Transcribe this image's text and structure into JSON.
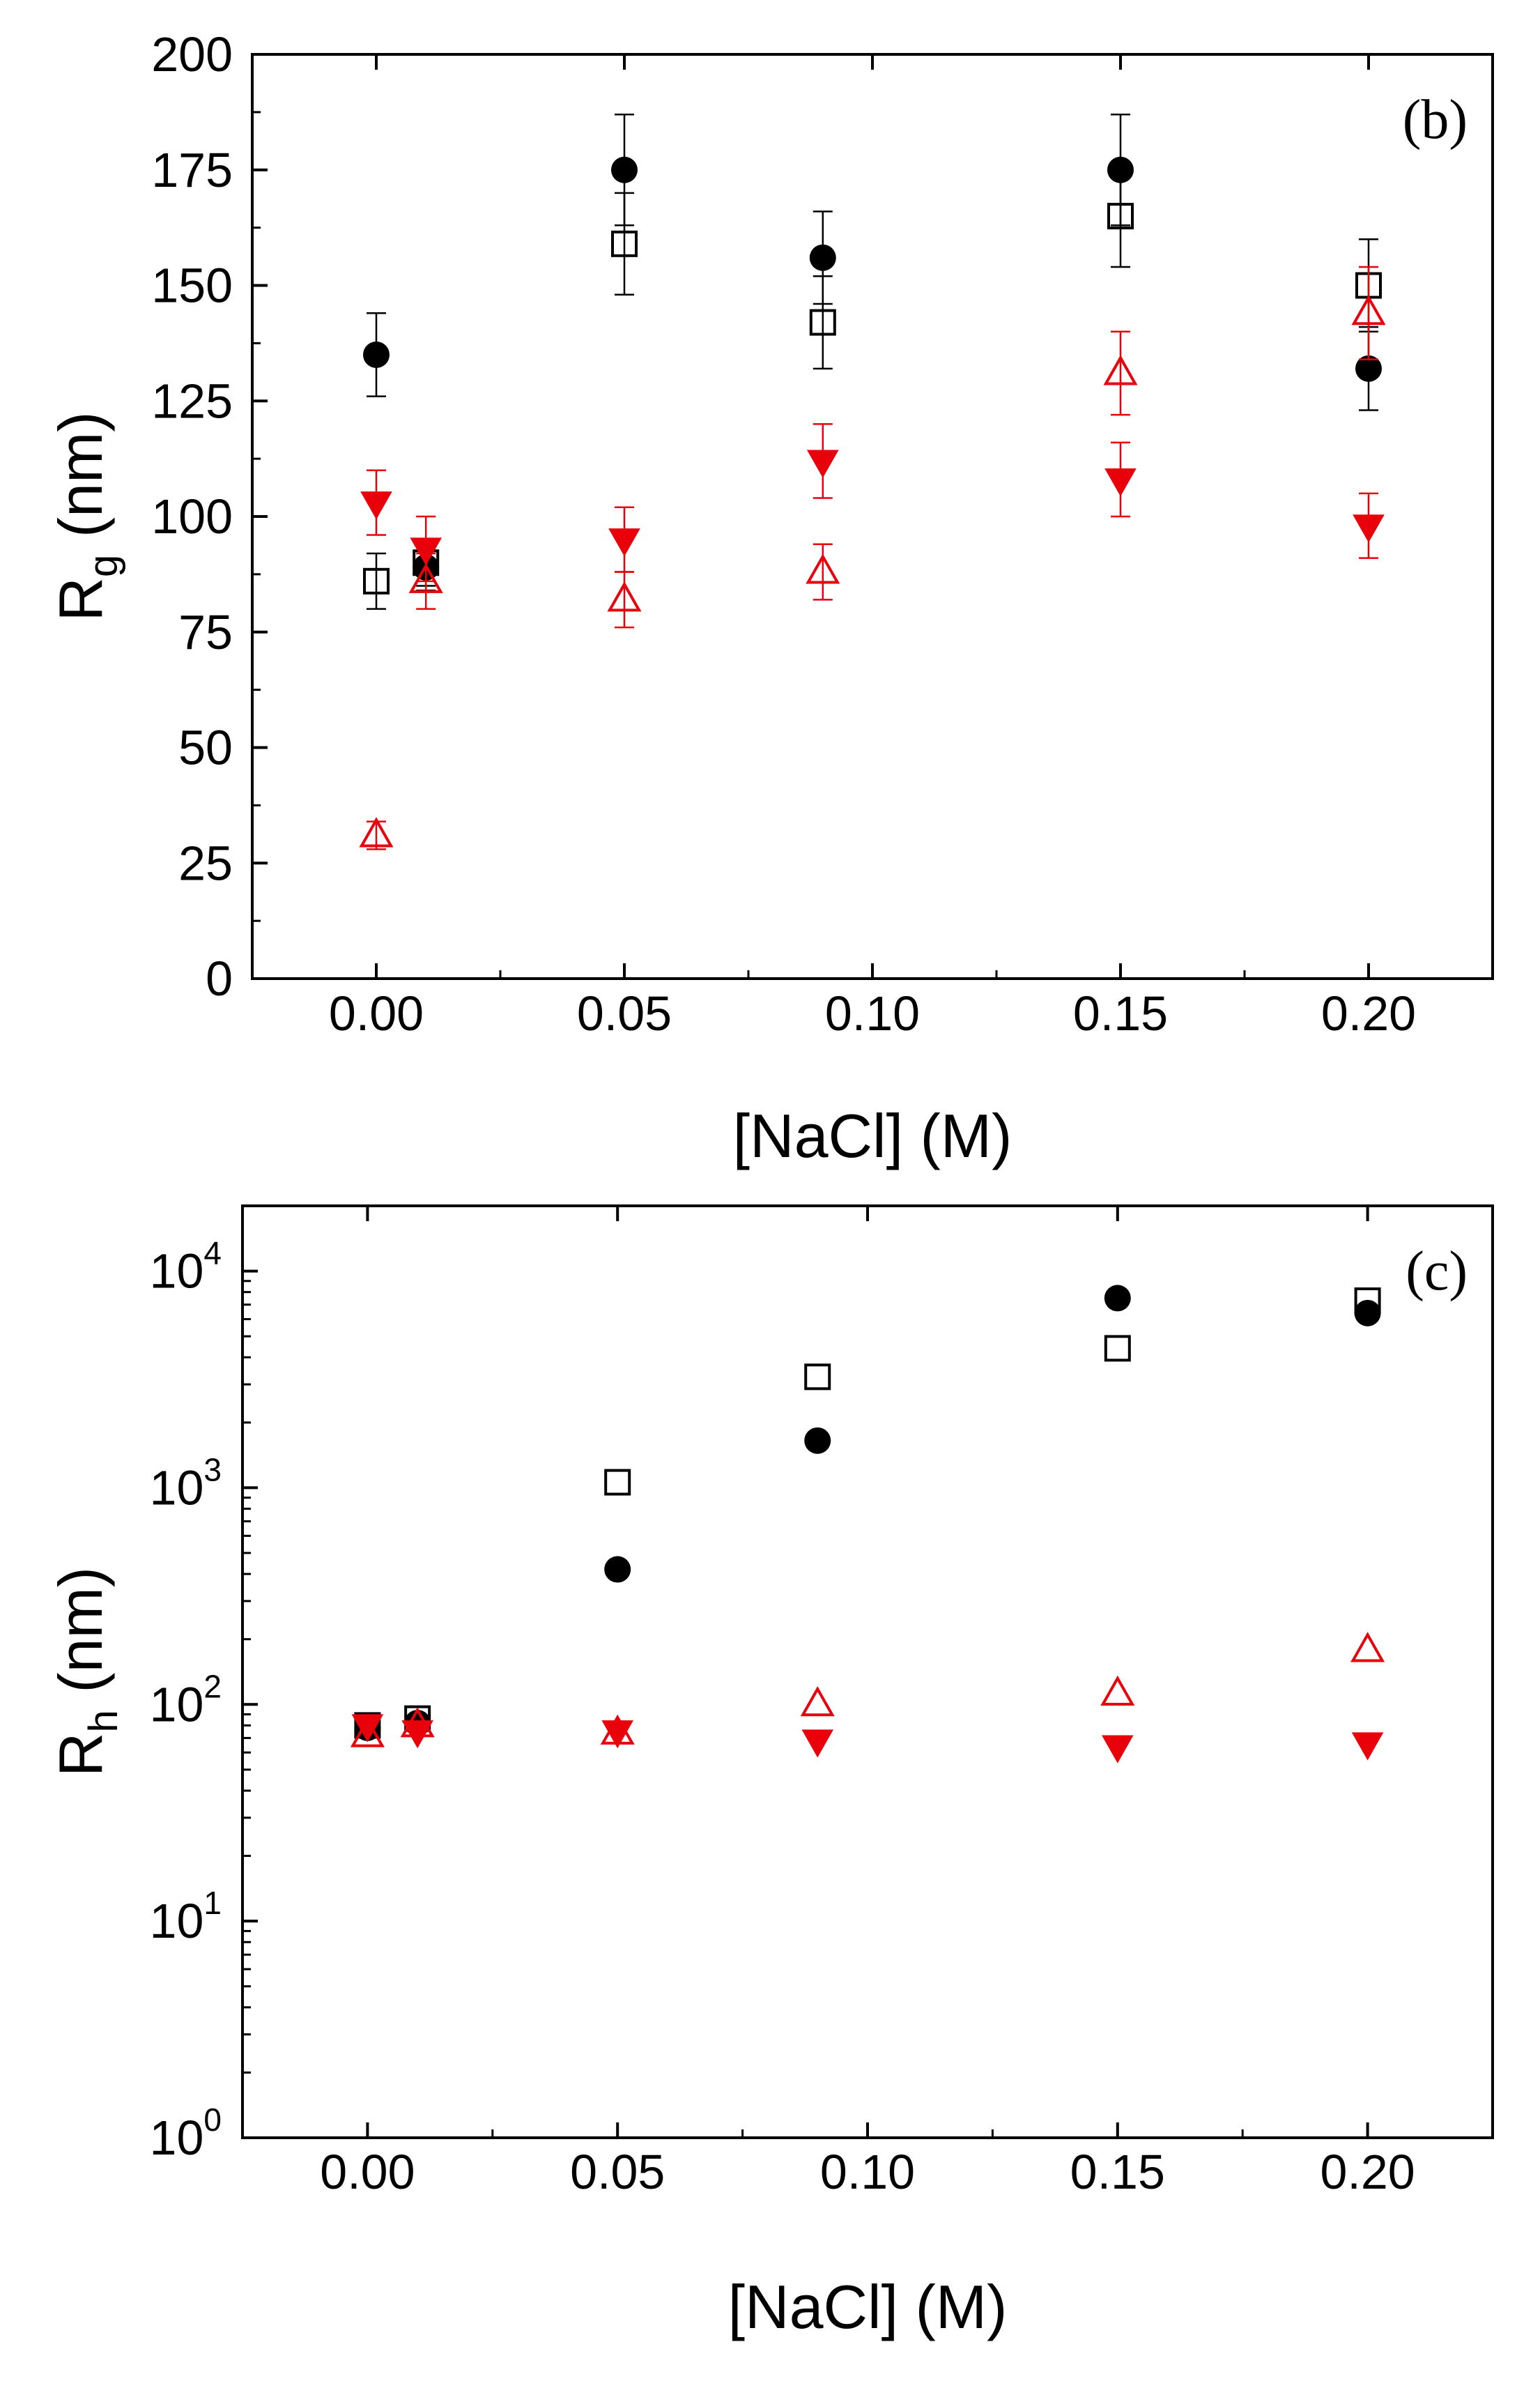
{
  "chart_data": [
    {
      "type": "scatter",
      "panel_label": "(b)",
      "xlabel": "[NaCl] (M)",
      "ylabel": "R",
      "ylabel_sub": "g",
      "ylabel_tail": " (nm)",
      "xlim": [
        -0.025,
        0.225
      ],
      "ylim": [
        0,
        200
      ],
      "yscale": "linear",
      "xticks": [
        0.0,
        0.05,
        0.1,
        0.15,
        0.2
      ],
      "xtick_labels": [
        "0.00",
        "0.05",
        "0.10",
        "0.15",
        "0.20"
      ],
      "yticks": [
        0,
        25,
        50,
        75,
        100,
        125,
        150,
        175,
        200
      ],
      "ytick_labels": [
        "0",
        "25",
        "50",
        "75",
        "100",
        "125",
        "150",
        "175",
        "200"
      ],
      "series": [
        {
          "name": "filled circles",
          "marker": "circle-filled",
          "color": "#000000",
          "x": [
            0.0,
            0.01,
            0.05,
            0.09,
            0.15,
            0.2
          ],
          "y": [
            135,
            89,
            175,
            156,
            175,
            132
          ],
          "err": [
            9,
            5,
            12,
            10,
            12,
            9
          ]
        },
        {
          "name": "open squares",
          "marker": "square-open",
          "color": "#000000",
          "x": [
            0.0,
            0.01,
            0.05,
            0.09,
            0.15,
            0.2
          ],
          "y": [
            86,
            90,
            159,
            142,
            165,
            150
          ],
          "err": [
            6,
            5,
            11,
            10,
            11,
            10
          ]
        },
        {
          "name": "open triangles",
          "marker": "triangle-up-open",
          "color": "#e8000b",
          "x": [
            0.0,
            0.01,
            0.05,
            0.09,
            0.15,
            0.2
          ],
          "y": [
            31,
            86,
            82,
            88,
            131,
            144
          ],
          "err": [
            3,
            6,
            6,
            6,
            9,
            10
          ]
        },
        {
          "name": "filled down triangles",
          "marker": "triangle-down-filled",
          "color": "#e8000b",
          "x": [
            0.0,
            0.01,
            0.05,
            0.09,
            0.15,
            0.2
          ],
          "y": [
            103,
            93,
            95,
            112,
            108,
            98
          ],
          "err": [
            7,
            7,
            7,
            8,
            8,
            7
          ]
        }
      ]
    },
    {
      "type": "scatter",
      "panel_label": "(c)",
      "xlabel": "[NaCl] (M)",
      "ylabel": "R",
      "ylabel_sub": "h",
      "ylabel_tail": " (nm)",
      "xlim": [
        -0.025,
        0.225
      ],
      "ylim": [
        1,
        20000
      ],
      "yscale": "log",
      "xticks": [
        0.0,
        0.05,
        0.1,
        0.15,
        0.2
      ],
      "xtick_labels": [
        "0.00",
        "0.05",
        "0.10",
        "0.15",
        "0.20"
      ],
      "yticks": [
        1,
        10,
        100,
        1000,
        10000
      ],
      "ytick_base": "10",
      "ytick_exponents": [
        "0",
        "1",
        "2",
        "3",
        "4"
      ],
      "series": [
        {
          "name": "filled circles",
          "marker": "circle-filled",
          "color": "#000000",
          "x": [
            0.0,
            0.01,
            0.05,
            0.09,
            0.15,
            0.2
          ],
          "y": [
            78,
            82,
            420,
            1650,
            7500,
            6400
          ]
        },
        {
          "name": "open squares",
          "marker": "square-open",
          "color": "#000000",
          "x": [
            0.0,
            0.01,
            0.05,
            0.09,
            0.15,
            0.2
          ],
          "y": [
            80,
            86,
            1060,
            3250,
            4400,
            7300
          ]
        },
        {
          "name": "open triangles",
          "marker": "triangle-up-open",
          "color": "#e8000b",
          "x": [
            0.0,
            0.01,
            0.05,
            0.09,
            0.15,
            0.2
          ],
          "y": [
            72,
            80,
            74,
            100,
            112,
            178
          ]
        },
        {
          "name": "filled down triangles",
          "marker": "triangle-down-filled",
          "color": "#e8000b",
          "x": [
            0.0,
            0.01,
            0.05,
            0.09,
            0.15,
            0.2
          ],
          "y": [
            80,
            75,
            75,
            68,
            64,
            66
          ]
        }
      ]
    }
  ]
}
